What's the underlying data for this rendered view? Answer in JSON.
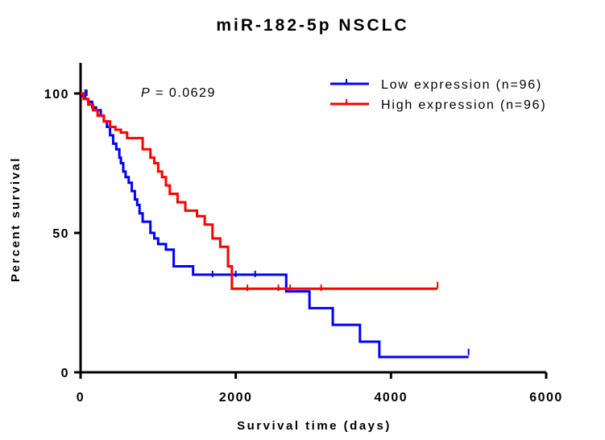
{
  "chart_data": {
    "type": "line",
    "subtype": "kaplan-meier",
    "title": "miR-182-5p NSCLC",
    "xlabel": "Survival time (days)",
    "ylabel": "Percent survival",
    "xlim": [
      0,
      6000
    ],
    "ylim": [
      0,
      105
    ],
    "xticks": [
      0,
      2000,
      4000,
      6000
    ],
    "yticks": [
      0,
      50,
      100
    ],
    "grid": false,
    "legend_position": "top-right",
    "annotation": {
      "p_symbol": "P",
      "p_value_text": " = 0.0629"
    },
    "series": [
      {
        "name": "Low expression (n=96)",
        "color": "#0000ff",
        "steps": [
          [
            0,
            100
          ],
          [
            20,
            99
          ],
          [
            60,
            98
          ],
          [
            100,
            97
          ],
          [
            150,
            95
          ],
          [
            200,
            94
          ],
          [
            260,
            92
          ],
          [
            300,
            90
          ],
          [
            340,
            88
          ],
          [
            380,
            85
          ],
          [
            420,
            82
          ],
          [
            460,
            80
          ],
          [
            500,
            77
          ],
          [
            520,
            75
          ],
          [
            550,
            72
          ],
          [
            580,
            70
          ],
          [
            620,
            68
          ],
          [
            660,
            65
          ],
          [
            700,
            62
          ],
          [
            730,
            60
          ],
          [
            760,
            57
          ],
          [
            800,
            54
          ],
          [
            900,
            50
          ],
          [
            950,
            48
          ],
          [
            1000,
            46
          ],
          [
            1100,
            44
          ],
          [
            1200,
            38
          ],
          [
            1450,
            35
          ],
          [
            2650,
            29
          ],
          [
            2950,
            23
          ],
          [
            3250,
            17
          ],
          [
            3600,
            11
          ],
          [
            3850,
            5.5
          ],
          [
            5000,
            5.5
          ]
        ],
        "censored": [
          [
            60,
            100
          ],
          [
            80,
            100
          ],
          [
            1700,
            35
          ],
          [
            2000,
            35
          ],
          [
            2250,
            35
          ],
          [
            5000,
            7
          ]
        ]
      },
      {
        "name": "High expression (n=96)",
        "color": "#ff0000",
        "steps": [
          [
            0,
            100
          ],
          [
            40,
            98
          ],
          [
            100,
            96
          ],
          [
            160,
            94
          ],
          [
            220,
            92
          ],
          [
            300,
            90
          ],
          [
            380,
            88
          ],
          [
            450,
            87
          ],
          [
            520,
            86
          ],
          [
            600,
            84
          ],
          [
            800,
            80
          ],
          [
            900,
            77
          ],
          [
            950,
            75
          ],
          [
            1000,
            72
          ],
          [
            1050,
            70
          ],
          [
            1100,
            67
          ],
          [
            1150,
            64
          ],
          [
            1250,
            61
          ],
          [
            1350,
            58
          ],
          [
            1500,
            56
          ],
          [
            1600,
            53
          ],
          [
            1700,
            48
          ],
          [
            1800,
            45
          ],
          [
            1900,
            38
          ],
          [
            1950,
            30
          ],
          [
            4600,
            30
          ]
        ],
        "censored": [
          [
            2150,
            30
          ],
          [
            2550,
            30
          ],
          [
            2700,
            30
          ],
          [
            3100,
            30
          ],
          [
            4600,
            31
          ]
        ]
      }
    ]
  }
}
